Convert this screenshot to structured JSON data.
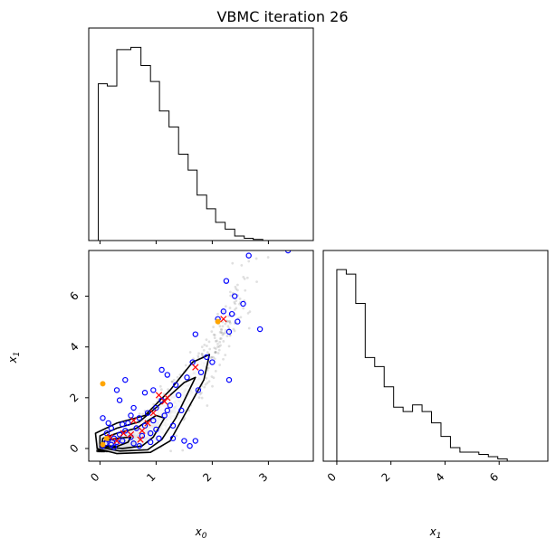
{
  "title": "VBMC iteration 26",
  "colors": {
    "hist": "#000000",
    "posterior_samples": "#000000",
    "training_points": "#0000ff",
    "active_points": "#ff0000",
    "highlight_points": "#ffa500"
  },
  "chart_data": [
    {
      "type": "histogram",
      "panel": "x0-marginal",
      "xlim": [
        -0.2,
        3.8
      ],
      "xticks": [
        0,
        1,
        2,
        3
      ],
      "bins": [
        -0.03,
        0.13,
        0.3,
        0.55,
        0.73,
        0.9,
        1.06,
        1.23,
        1.4,
        1.57,
        1.73,
        1.9,
        2.06,
        2.23,
        2.4,
        2.57,
        2.73,
        2.9,
        3.4
      ],
      "counts": [
        0.69,
        0.68,
        0.84,
        0.85,
        0.77,
        0.7,
        0.57,
        0.5,
        0.38,
        0.31,
        0.2,
        0.14,
        0.08,
        0.05,
        0.02,
        0.01,
        0.005,
        0.0
      ]
    },
    {
      "type": "scatter",
      "panel": "x0-x1-joint",
      "xlabel": "x0",
      "ylabel": "x1",
      "xlim": [
        -0.2,
        3.8
      ],
      "ylim": [
        -0.5,
        7.8
      ],
      "xticks": [
        0,
        1,
        2,
        3
      ],
      "yticks": [
        0,
        2,
        4,
        6
      ],
      "training_points": [
        [
          0.05,
          0.1
        ],
        [
          0.1,
          0.2
        ],
        [
          0.15,
          0.35
        ],
        [
          0.2,
          0.15
        ],
        [
          0.25,
          0.4
        ],
        [
          0.3,
          0.25
        ],
        [
          0.12,
          0.6
        ],
        [
          0.2,
          0.8
        ],
        [
          0.35,
          0.55
        ],
        [
          0.4,
          0.3
        ],
        [
          0.45,
          0.7
        ],
        [
          0.5,
          1.0
        ],
        [
          0.55,
          0.45
        ],
        [
          0.6,
          0.2
        ],
        [
          0.65,
          0.8
        ],
        [
          0.7,
          1.2
        ],
        [
          0.75,
          0.5
        ],
        [
          0.8,
          0.9
        ],
        [
          0.85,
          1.4
        ],
        [
          0.9,
          0.6
        ],
        [
          0.95,
          1.1
        ],
        [
          1.0,
          1.6
        ],
        [
          1.05,
          0.4
        ],
        [
          1.1,
          1.9
        ],
        [
          1.15,
          1.3
        ],
        [
          1.2,
          2.9
        ],
        [
          1.25,
          1.7
        ],
        [
          1.3,
          0.9
        ],
        [
          1.35,
          2.5
        ],
        [
          1.4,
          2.1
        ],
        [
          1.45,
          1.5
        ],
        [
          1.5,
          0.3
        ],
        [
          1.55,
          2.8
        ],
        [
          1.6,
          0.1
        ],
        [
          1.65,
          3.4
        ],
        [
          1.7,
          4.5
        ],
        [
          1.75,
          2.3
        ],
        [
          1.8,
          3.0
        ],
        [
          1.9,
          3.6
        ],
        [
          2.0,
          3.4
        ],
        [
          2.1,
          5.1
        ],
        [
          2.2,
          5.4
        ],
        [
          2.25,
          6.6
        ],
        [
          2.3,
          4.6
        ],
        [
          2.35,
          5.3
        ],
        [
          2.4,
          6.0
        ],
        [
          2.45,
          5.0
        ],
        [
          2.55,
          5.7
        ],
        [
          2.65,
          7.6
        ],
        [
          2.85,
          4.7
        ],
        [
          3.35,
          7.8
        ],
        [
          0.3,
          2.3
        ],
        [
          0.45,
          2.7
        ],
        [
          0.35,
          1.9
        ],
        [
          0.6,
          1.6
        ],
        [
          0.8,
          2.2
        ],
        [
          0.95,
          2.3
        ],
        [
          1.1,
          3.1
        ],
        [
          0.05,
          1.2
        ],
        [
          0.15,
          1.0
        ],
        [
          0.25,
          0.05
        ],
        [
          0.7,
          0.1
        ],
        [
          0.9,
          0.25
        ],
        [
          1.3,
          0.4
        ],
        [
          1.7,
          0.3
        ],
        [
          2.3,
          2.7
        ],
        [
          0.55,
          1.3
        ],
        [
          0.4,
          0.95
        ],
        [
          1.0,
          0.75
        ],
        [
          1.2,
          1.5
        ]
      ],
      "active_points": [
        [
          0.18,
          0.45
        ],
        [
          0.3,
          0.3
        ],
        [
          0.55,
          0.55
        ],
        [
          0.6,
          1.1
        ],
        [
          0.75,
          0.7
        ],
        [
          0.85,
          1.0
        ],
        [
          1.05,
          2.1
        ],
        [
          1.15,
          1.85
        ],
        [
          1.2,
          2.0
        ],
        [
          1.7,
          3.2
        ],
        [
          2.2,
          5.1
        ],
        [
          0.72,
          0.35
        ],
        [
          0.42,
          0.6
        ],
        [
          0.95,
          1.4
        ]
      ],
      "highlight_points": [
        [
          0.05,
          2.55
        ],
        [
          2.1,
          5.0
        ],
        [
          0.05,
          0.15
        ],
        [
          0.12,
          0.4
        ]
      ],
      "contour_levels": 4
    },
    {
      "type": "histogram",
      "panel": "x1-marginal",
      "xlabel": "x1",
      "xlim": [
        -0.5,
        7.8
      ],
      "xticks": [
        0,
        2,
        4,
        6
      ],
      "bins": [
        0.0,
        0.35,
        0.7,
        1.05,
        1.4,
        1.75,
        2.1,
        2.45,
        2.8,
        3.15,
        3.5,
        3.85,
        4.2,
        4.55,
        4.9,
        5.25,
        5.6,
        5.95,
        6.3,
        7.5
      ],
      "counts": [
        0.85,
        0.83,
        0.7,
        0.46,
        0.42,
        0.33,
        0.24,
        0.22,
        0.25,
        0.22,
        0.17,
        0.11,
        0.06,
        0.04,
        0.04,
        0.03,
        0.02,
        0.01,
        0.0
      ]
    }
  ]
}
